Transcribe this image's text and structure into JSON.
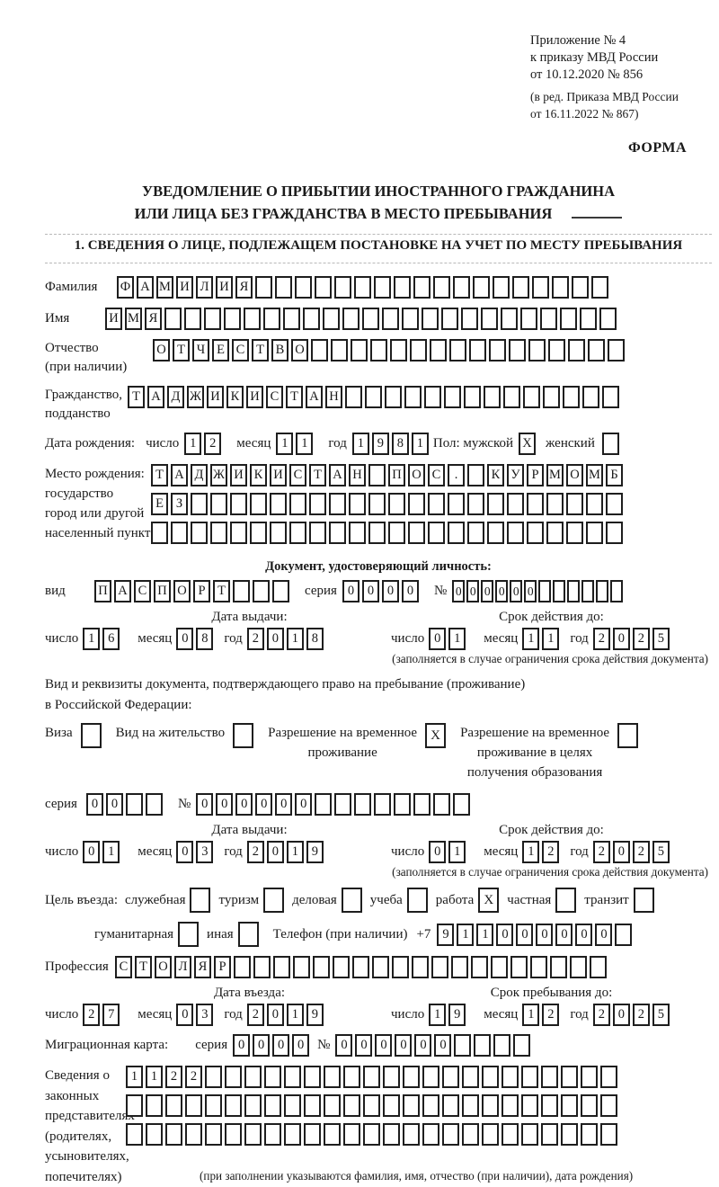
{
  "meta": {
    "appendix_line1": "Приложение № 4",
    "appendix_line2": "к приказу МВД России",
    "appendix_line3": "от 10.12.2020 № 856",
    "edition_line1": "(в ред. Приказа МВД России",
    "edition_line2": "от 16.11.2022 № 867)",
    "form_word": "ФОРМА"
  },
  "title": {
    "line1": "УВЕДОМЛЕНИЕ О ПРИБЫТИИ ИНОСТРАННОГО ГРАЖДАНИНА",
    "line2": "ИЛИ ЛИЦА БЕЗ ГРАЖДАНСТВА В МЕСТО ПРЕБЫВАНИЯ"
  },
  "section1": {
    "heading": "1. СВЕДЕНИЯ О ЛИЦЕ, ПОДЛЕЖАЩЕМ ПОСТАНОВКЕ НА УЧЕТ ПО МЕСТУ ПРЕБЫВАНИЯ",
    "surname": {
      "label": "Фамилия",
      "cells": {
        "v": "ФАМИЛИЯ",
        "n": 25
      }
    },
    "given_name": {
      "label": "Имя",
      "cells": {
        "v": "ИМЯ",
        "n": 26
      }
    },
    "patronymic": {
      "label": "Отчество",
      "label2": "(при наличии)",
      "cells": {
        "v": "ОТЧЕСТВО",
        "n": 24
      }
    },
    "citizenship": {
      "label": "Гражданство,",
      "label2": "подданство",
      "cells": {
        "v": "ТАДЖИКИСТАН",
        "n": 25
      }
    },
    "birth": {
      "label": "Дата рождения:",
      "day_label": "число",
      "day": {
        "v": "12",
        "n": 2
      },
      "month_label": "месяц",
      "month": {
        "v": "11",
        "n": 2
      },
      "year_label": "год",
      "year": {
        "v": "1981",
        "n": 4
      },
      "sex_label": "Пол: мужской",
      "male": {
        "v": "X",
        "n": 1
      },
      "female_label": "женский",
      "female": {
        "v": "",
        "n": 1
      }
    },
    "birth_place": {
      "label1": "Место рождения:",
      "label2": "государство",
      "label3": "город или другой",
      "label4": "населенный пункт",
      "row1": {
        "v": "ТАДЖИКИСТАН ПОС. КУРМОМБ",
        "n": 24
      },
      "row2": {
        "v": "ЕЗ",
        "n": 24
      },
      "row3": {
        "v": "",
        "n": 24
      }
    },
    "identity_doc": {
      "heading": "Документ, удостоверяющий личность:",
      "kind_label": "вид",
      "kind": {
        "v": "ПАСПОРТ",
        "n": 10
      },
      "series_label": "серия",
      "series": {
        "v": "0000",
        "n": 4
      },
      "number_label": "№",
      "number": {
        "v": "000000",
        "n": 12
      },
      "issue_heading": "Дата выдачи:",
      "issue_day_label": "число",
      "issue_day": {
        "v": "16",
        "n": 2
      },
      "issue_month_label": "месяц",
      "issue_month": {
        "v": "08",
        "n": 2
      },
      "issue_year_label": "год",
      "issue_year": {
        "v": "2018",
        "n": 4
      },
      "valid_heading": "Срок действия до:",
      "valid_day_label": "число",
      "valid_day": {
        "v": "01",
        "n": 2
      },
      "valid_month_label": "месяц",
      "valid_month": {
        "v": "11",
        "n": 2
      },
      "valid_year_label": "год",
      "valid_year": {
        "v": "2025",
        "n": 4
      },
      "footnote": "(заполняется в случае ограничения срока действия документа)"
    },
    "residence_doc": {
      "intro1": "Вид и реквизиты документа, подтверждающего право на пребывание (проживание)",
      "intro2": "в Российской Федерации:",
      "options": [
        {
          "id": "visa",
          "label": "Виза",
          "checked": false
        },
        {
          "id": "residence-permit",
          "label": "Вид на жительство",
          "checked": false
        },
        {
          "id": "temporary-residence-permit",
          "label": "Разрешение на временное\nпроживание",
          "checked": true
        },
        {
          "id": "temporary-residence-education",
          "label": "Разрешение на временное\nпроживание в целях\nполучения образования",
          "checked": false
        }
      ],
      "series_label": "серия",
      "series": {
        "v": "00",
        "n": 4
      },
      "number_label": "№",
      "number": {
        "v": "000000",
        "n": 14
      },
      "issue_heading": "Дата выдачи:",
      "issue_day_label": "число",
      "issue_day": {
        "v": "01",
        "n": 2
      },
      "issue_month_label": "месяц",
      "issue_month": {
        "v": "03",
        "n": 2
      },
      "issue_year_label": "год",
      "issue_year": {
        "v": "2019",
        "n": 4
      },
      "valid_heading": "Срок действия до:",
      "valid_day_label": "число",
      "valid_day": {
        "v": "01",
        "n": 2
      },
      "valid_month_label": "месяц",
      "valid_month": {
        "v": "12",
        "n": 2
      },
      "valid_year_label": "год",
      "valid_year": {
        "v": "2025",
        "n": 4
      },
      "footnote": "(заполняется в случае ограничения срока действия документа)"
    },
    "purpose": {
      "label": "Цель въезда:",
      "options_line1": [
        {
          "id": "official",
          "label": "служебная",
          "checked": false
        },
        {
          "id": "tourism",
          "label": "туризм",
          "checked": false
        },
        {
          "id": "business",
          "label": "деловая",
          "checked": false
        },
        {
          "id": "study",
          "label": "учеба",
          "checked": false
        },
        {
          "id": "work",
          "label": "работа",
          "checked": true
        },
        {
          "id": "private",
          "label": "частная",
          "checked": false
        },
        {
          "id": "transit",
          "label": "транзит",
          "checked": false
        }
      ],
      "options_line2": [
        {
          "id": "humanitarian",
          "label": "гуманитарная",
          "checked": false
        },
        {
          "id": "other",
          "label": "иная",
          "checked": false
        }
      ],
      "phone_label": "Телефон (при наличии)",
      "phone_prefix": "+7",
      "phone": {
        "v": "911000000",
        "n": 10
      }
    },
    "profession": {
      "label": "Профессия",
      "cells": {
        "v": "СТОЛЯР",
        "n": 25
      }
    },
    "entry": {
      "entry_heading": "Дата въезда:",
      "entry_day_label": "число",
      "entry_day": {
        "v": "27",
        "n": 2
      },
      "entry_month_label": "месяц",
      "entry_month": {
        "v": "03",
        "n": 2
      },
      "entry_year_label": "год",
      "entry_year": {
        "v": "2019",
        "n": 4
      },
      "stay_heading": "Срок пребывания до:",
      "stay_day_label": "число",
      "stay_day": {
        "v": "19",
        "n": 2
      },
      "stay_month_label": "месяц",
      "stay_month": {
        "v": "12",
        "n": 2
      },
      "stay_year_label": "год",
      "stay_year": {
        "v": "2025",
        "n": 4
      }
    },
    "migration_card": {
      "label": "Миграционная карта:",
      "series_label": "серия",
      "series": {
        "v": "0000",
        "n": 4
      },
      "number_label": "№",
      "number": {
        "v": "000000",
        "n": 10
      }
    },
    "legal_reps": {
      "label1": "Сведения о",
      "label2": "законных",
      "label3": "представителях",
      "label4": "(родителях,",
      "label5": "усыновителях,",
      "label6": "попечителях)",
      "row1": {
        "v": "1122",
        "n": 25
      },
      "row2": {
        "v": "",
        "n": 25
      },
      "row3": {
        "v": "",
        "n": 25
      },
      "footnote": "(при заполнении указываются фамилия, имя, отчество (при наличии), дата рождения)"
    }
  }
}
